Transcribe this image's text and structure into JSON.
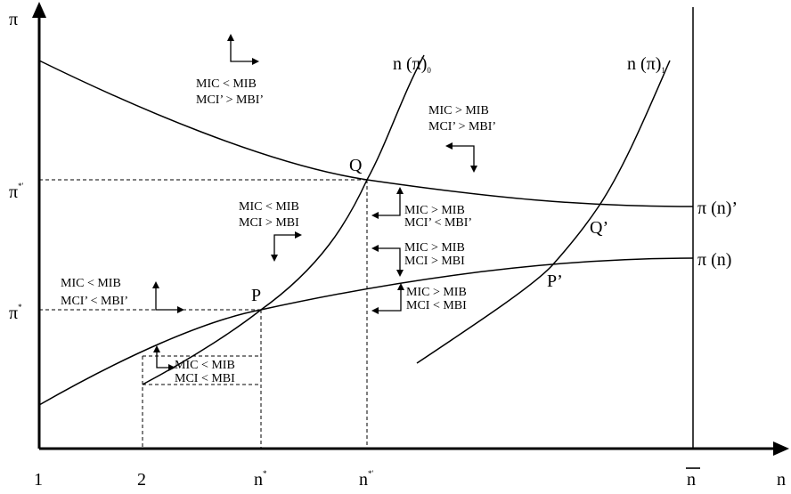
{
  "diagram": {
    "axes": {
      "y_label": "π",
      "x_label": "n"
    },
    "x_ticks": [
      {
        "id": "one",
        "text": "1"
      },
      {
        "id": "two",
        "text": "2"
      },
      {
        "id": "nstar",
        "text": "n",
        "sup": "*"
      },
      {
        "id": "nstarprime",
        "text": "n",
        "sup": "*'"
      },
      {
        "id": "nbar",
        "text": "n"
      }
    ],
    "y_ticks": [
      {
        "id": "pistarprime",
        "text": "π",
        "sup": "*'"
      },
      {
        "id": "pistar",
        "text": "π",
        "sup": "*"
      }
    ],
    "curve_labels": {
      "n_pi_0": {
        "text": "n (π)",
        "sub": "0"
      },
      "n_pi_1": {
        "text": "n (π)",
        "sub": "1"
      },
      "pi_n_prime": "π (n)’",
      "pi_n": "π (n)"
    },
    "points": {
      "Q": "Q",
      "Q_prime": "Q’",
      "P": "P",
      "P_prime": "P’"
    },
    "region_labels": [
      {
        "id": "top-left",
        "line1": "MIC <  MIB",
        "line2": "MCI’ > MBI’"
      },
      {
        "id": "top-right",
        "line1": "MIC >  MIB",
        "line2": "MCI’ > MBI’"
      },
      {
        "id": "mid-left",
        "line1": "MIC < MIB",
        "line2": "MCI > MBI"
      },
      {
        "id": "mid-right-upper",
        "line1": "MIC >  MIB",
        "line2": "MCI’ < MBI’"
      },
      {
        "id": "mid-right-middle",
        "line1": "MIC > MIB",
        "line2": "MCI > MBI"
      },
      {
        "id": "left",
        "line1": "MIC  <  MIB",
        "line2": "MCI’ < MBI’"
      },
      {
        "id": "mid-right-lower",
        "line1": "MIC > MIB",
        "line2": "MCI < MBI"
      },
      {
        "id": "bottom",
        "line1": "MIC < MIB",
        "line2": "MCI < MBI"
      }
    ]
  }
}
